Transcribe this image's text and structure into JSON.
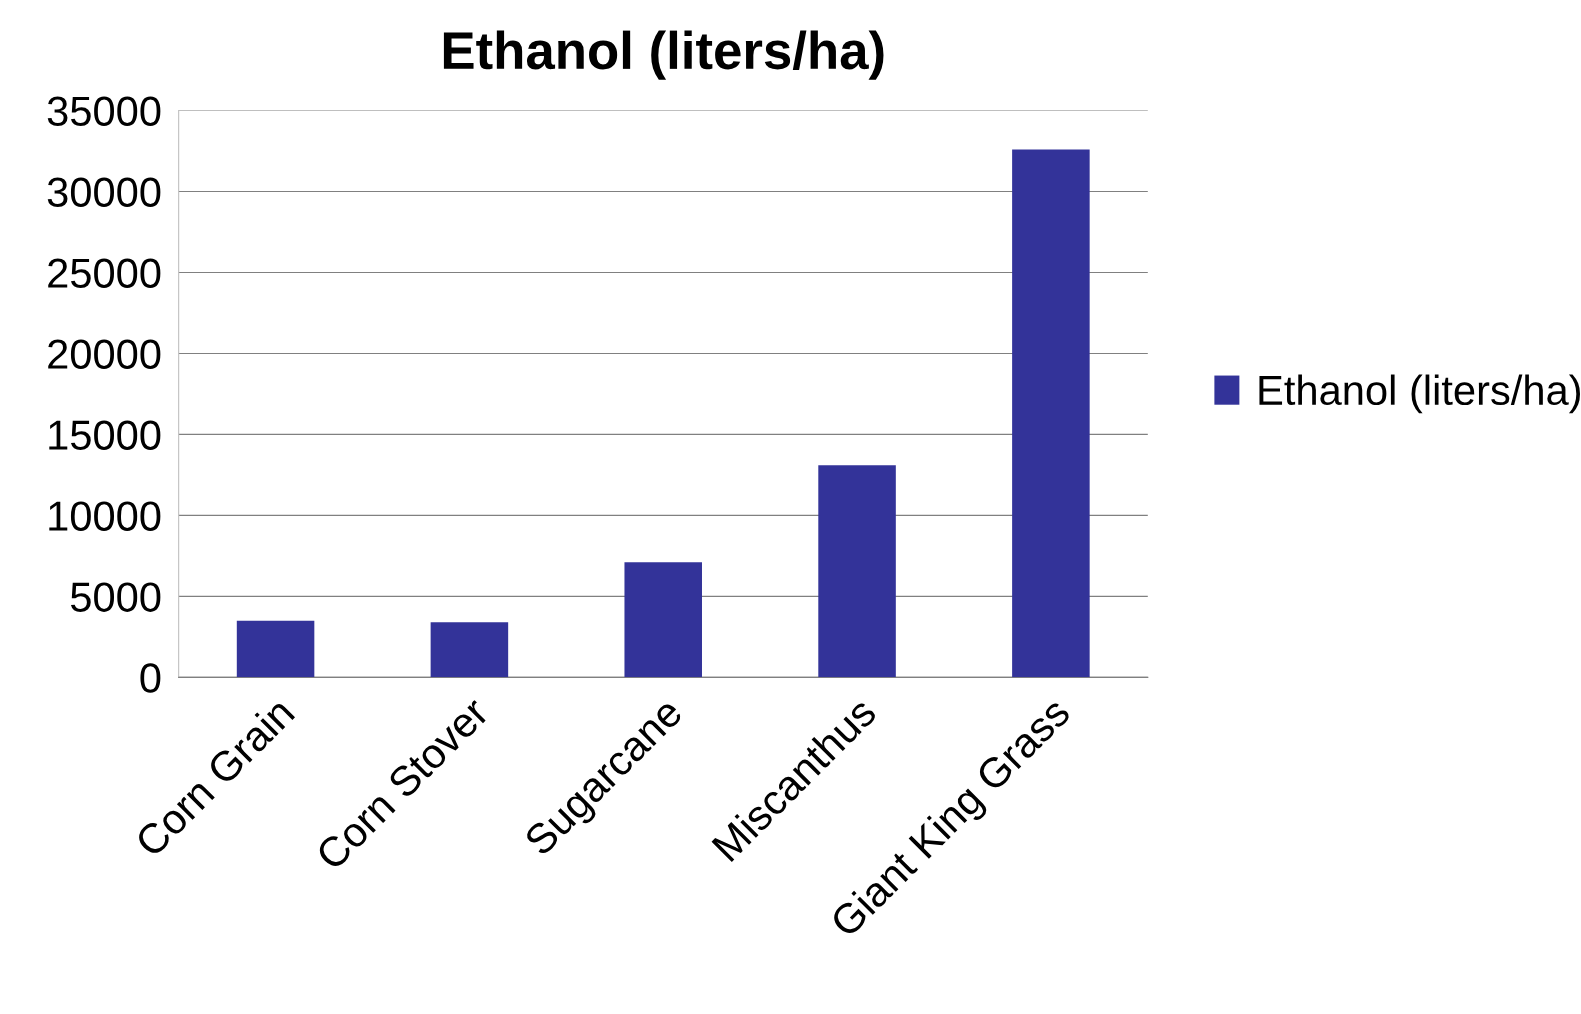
{
  "chart_data": {
    "type": "bar",
    "title": "Ethanol (liters/ha)",
    "categories": [
      "Corn Grain",
      "Corn Stover",
      "Sugarcane",
      "Miscanthus",
      "Giant King Grass"
    ],
    "series": [
      {
        "name": "Ethanol (liters/ha)",
        "color": "#333399",
        "values": [
          3500,
          3400,
          7100,
          13100,
          32600
        ]
      }
    ],
    "ylim": [
      0,
      35000
    ],
    "yticks": [
      0,
      5000,
      10000,
      15000,
      20000,
      25000,
      30000,
      35000
    ],
    "grid": "y",
    "legend": "right"
  }
}
